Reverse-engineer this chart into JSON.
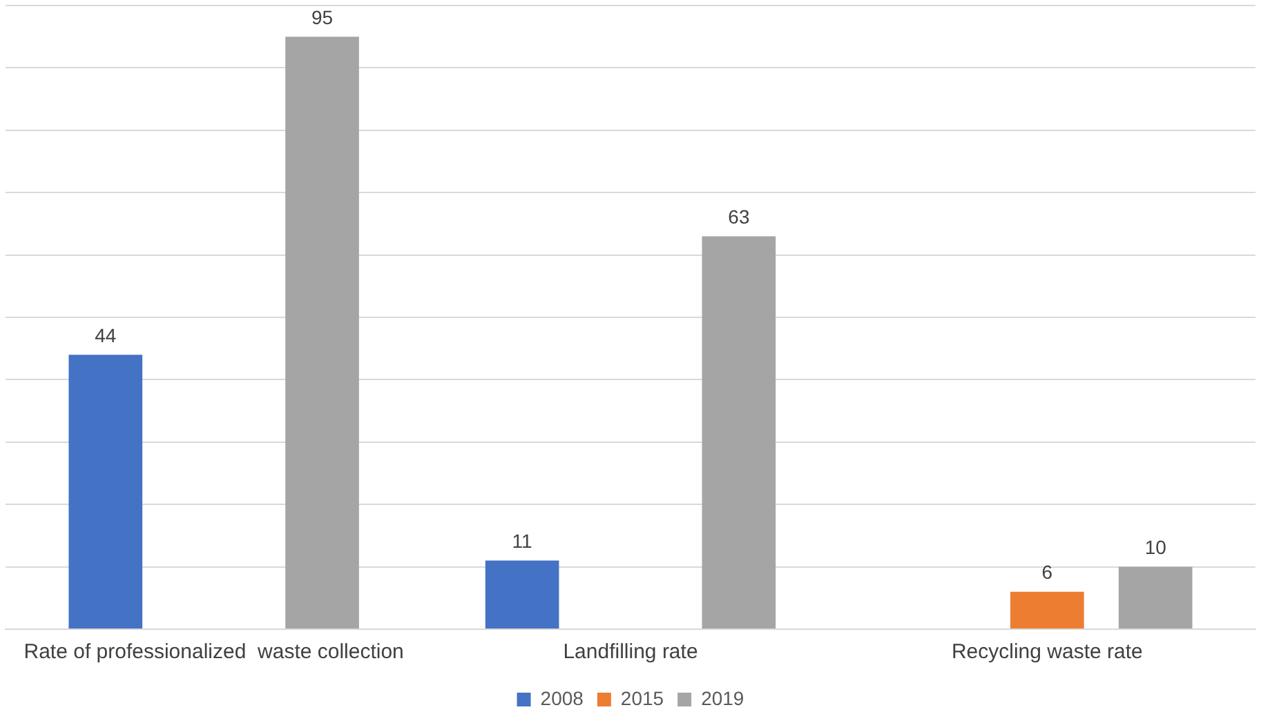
{
  "chart_data": {
    "type": "bar",
    "categories": [
      "Rate of professionalized  waste collection",
      "Landfilling rate",
      "Recycling waste rate"
    ],
    "series": [
      {
        "name": "2008",
        "color": "#4472c4",
        "values": [
          44,
          11,
          null
        ]
      },
      {
        "name": "2015",
        "color": "#ed7d31",
        "values": [
          null,
          null,
          6
        ]
      },
      {
        "name": "2019",
        "color": "#a5a5a5",
        "values": [
          95,
          63,
          10
        ]
      }
    ],
    "ylim": [
      0,
      100
    ],
    "yticks": [
      {
        "value": 0,
        "label": null
      },
      {
        "value": 10,
        "label": null
      },
      {
        "value": 20,
        "label": null
      },
      {
        "value": 30,
        "label": null
      },
      {
        "value": 40,
        "label": null
      },
      {
        "value": 50,
        "label": null
      },
      {
        "value": 60,
        "label": null
      },
      {
        "value": 70,
        "label": null
      },
      {
        "value": 80,
        "label": null
      },
      {
        "value": 90,
        "label": null
      },
      {
        "value": 100,
        "label": null
      }
    ],
    "tick_labels": "x",
    "grid": "y",
    "legend": "bottom",
    "data_labels": true
  }
}
